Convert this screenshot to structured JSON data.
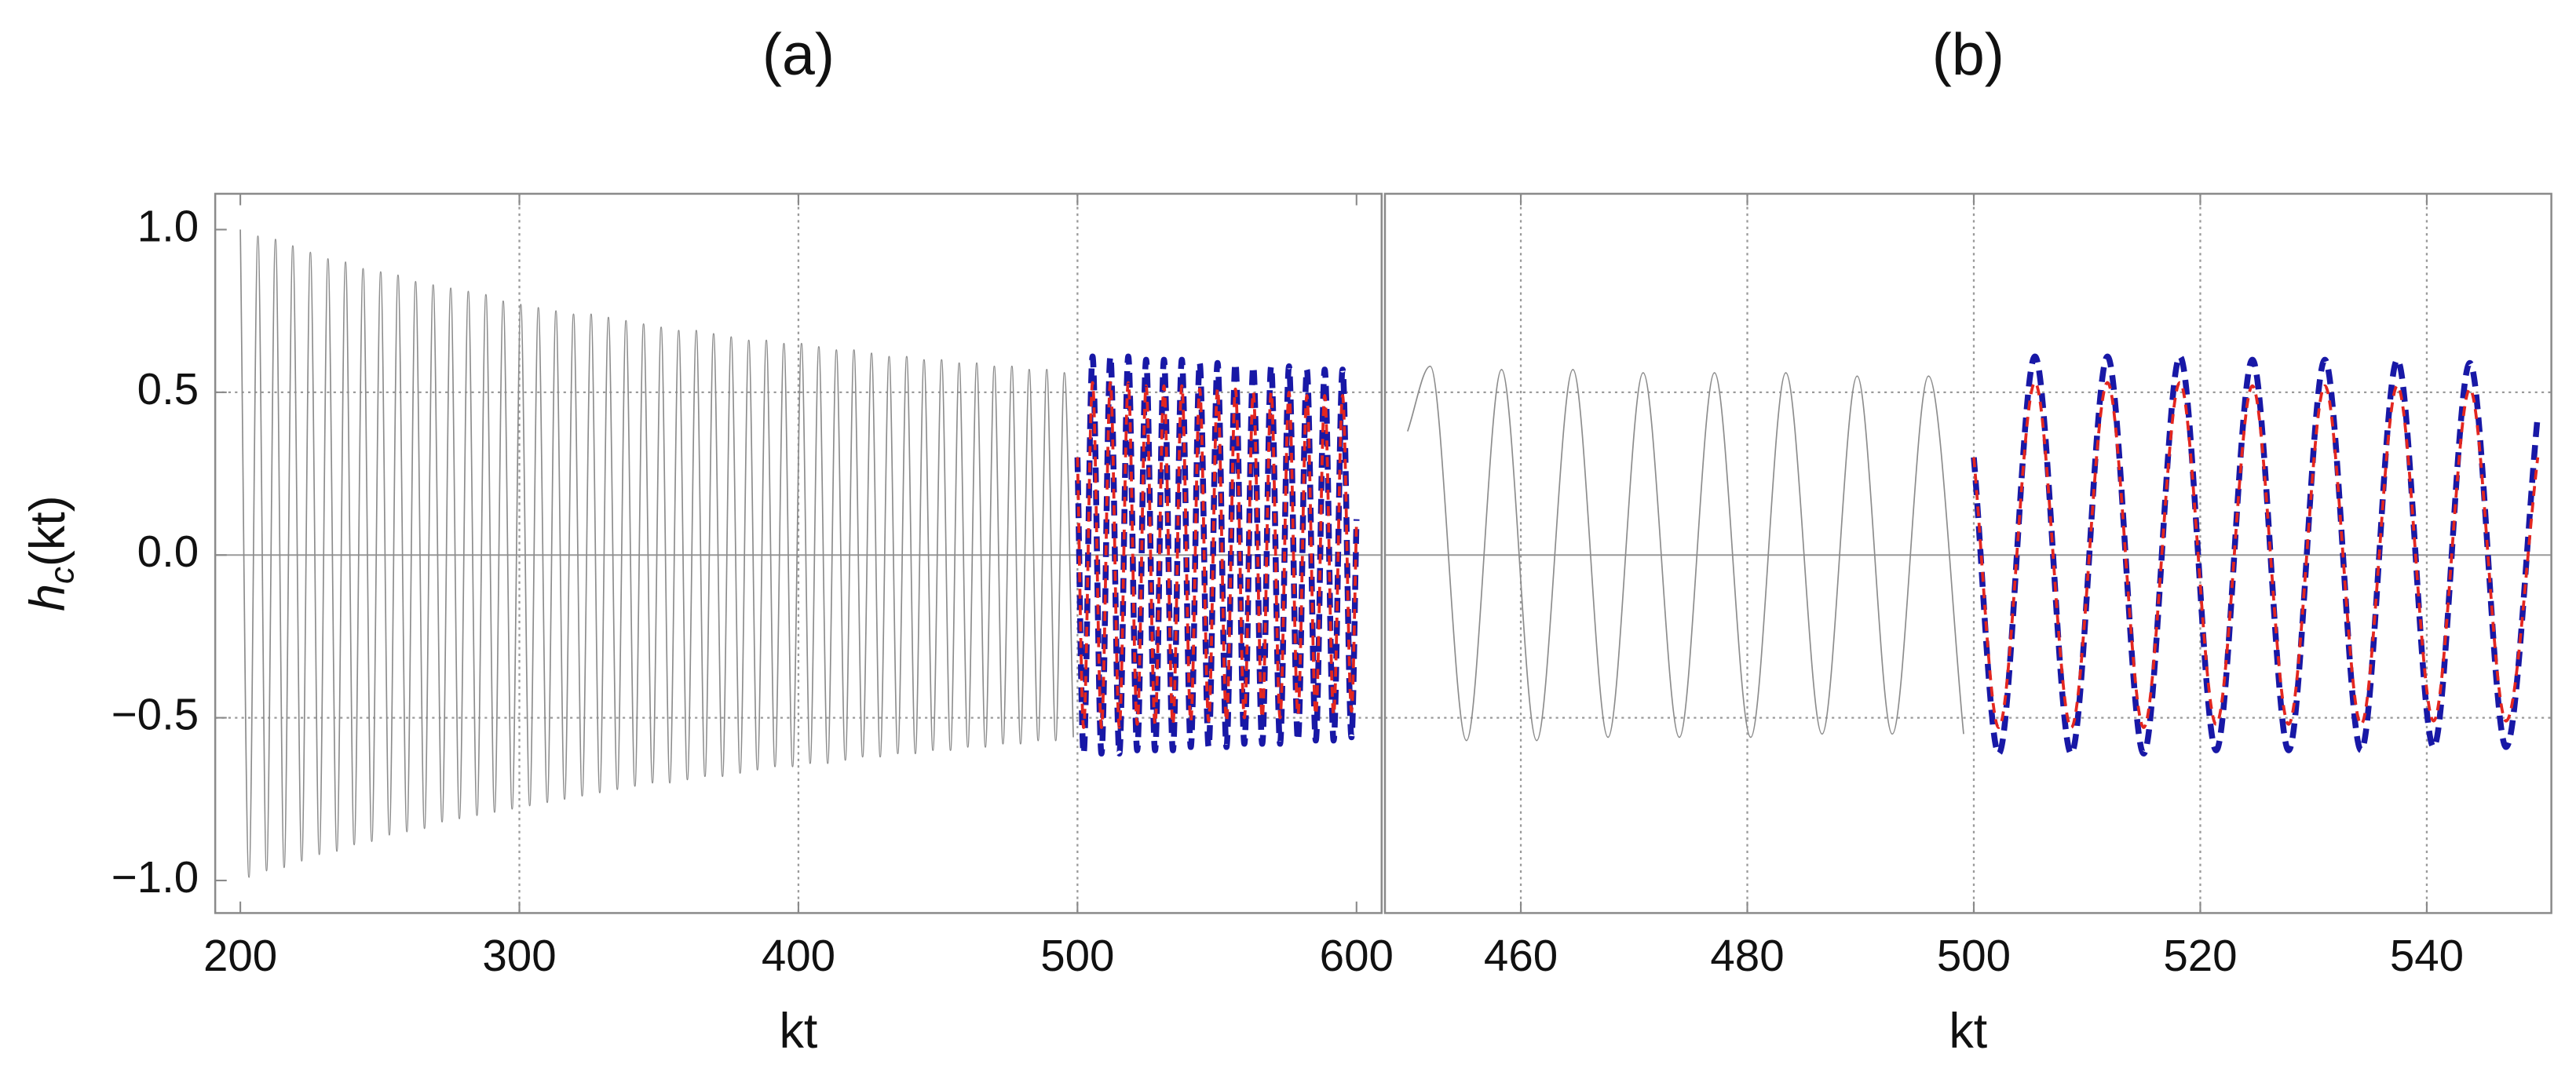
{
  "chart_data": [
    {
      "type": "line",
      "title": "(a)",
      "xlabel": "kt",
      "ylabel": [
        "h",
        "c",
        "(kt)"
      ],
      "xlim": [
        191,
        609
      ],
      "ylim": [
        -1.1,
        1.11
      ],
      "xticks": [
        200,
        300,
        400,
        500,
        600
      ],
      "yticks": [
        {
          "value": -1.0,
          "label": "−1.0"
        },
        {
          "value": -0.5,
          "label": "−0.5"
        },
        {
          "value": 0.0,
          "label": "0.0"
        },
        {
          "value": 0.5,
          "label": "0.5"
        },
        {
          "value": 1.0,
          "label": "1.0"
        }
      ],
      "xgrid": [
        300,
        400,
        500
      ],
      "ygrid": [
        -0.5,
        0.5
      ],
      "zero_line": true,
      "series": [
        {
          "color": "#8c8c8c",
          "width": 0.8,
          "dash": "none",
          "x": [
            200.0,
            203.1,
            206.3,
            209.4,
            212.6,
            215.7,
            218.8,
            222.0,
            225.1,
            228.3,
            231.4,
            234.6,
            237.7,
            240.8,
            244.0,
            247.1,
            250.3,
            253.4,
            256.5,
            259.7,
            262.8,
            266.0,
            269.1,
            272.3,
            275.4,
            278.5,
            281.7,
            284.8,
            288.0,
            291.1,
            294.2,
            297.4,
            300.5,
            303.7,
            306.8,
            310.0,
            313.1,
            316.2,
            319.4,
            322.5,
            325.7,
            328.8,
            331.9,
            335.1,
            338.2,
            341.4,
            344.5,
            347.7,
            350.8,
            353.9,
            357.1,
            360.2,
            363.4,
            366.5,
            369.6,
            372.8,
            375.9,
            379.1,
            382.2,
            385.3,
            388.5,
            391.6,
            394.8,
            397.9,
            401.1,
            404.2,
            407.3,
            410.5,
            413.6,
            416.8,
            419.9,
            423.0,
            426.2,
            429.3,
            432.5,
            435.6,
            438.8,
            441.9,
            445.0,
            448.2,
            451.3,
            454.5,
            457.6,
            460.7,
            463.9,
            467.0,
            470.2,
            473.3,
            476.5,
            479.6,
            482.7,
            485.9,
            489.0,
            492.2,
            495.3,
            498.5
          ],
          "values": [
            1.0,
            -0.99,
            0.98,
            -0.97,
            0.97,
            -0.96,
            0.95,
            -0.94,
            0.93,
            -0.92,
            0.91,
            -0.91,
            0.9,
            -0.89,
            0.88,
            -0.88,
            0.87,
            -0.86,
            0.86,
            -0.85,
            0.84,
            -0.84,
            0.83,
            -0.82,
            0.82,
            -0.81,
            0.81,
            -0.8,
            0.8,
            -0.79,
            0.78,
            -0.78,
            0.77,
            -0.77,
            0.76,
            -0.76,
            0.75,
            -0.75,
            0.74,
            -0.74,
            0.74,
            -0.73,
            0.73,
            -0.72,
            0.72,
            -0.71,
            0.71,
            -0.7,
            0.7,
            -0.7,
            0.69,
            -0.69,
            0.69,
            -0.68,
            0.68,
            -0.68,
            0.67,
            -0.67,
            0.66,
            -0.66,
            0.66,
            -0.65,
            0.65,
            -0.65,
            0.65,
            -0.64,
            0.64,
            -0.64,
            0.63,
            -0.63,
            0.63,
            -0.62,
            0.62,
            -0.62,
            0.61,
            -0.61,
            0.61,
            -0.61,
            0.6,
            -0.6,
            0.6,
            -0.6,
            0.59,
            -0.59,
            0.59,
            -0.59,
            0.58,
            -0.58,
            0.58,
            -0.58,
            0.57,
            -0.57,
            0.57,
            -0.57,
            0.56,
            -0.56
          ]
        },
        {
          "color": "#1818a6",
          "width": 3.6,
          "dash": "9 5",
          "x": [
            500.0,
            502.2,
            505.4,
            508.6,
            511.8,
            515.0,
            518.2,
            521.4,
            524.6,
            527.8,
            531.0,
            534.2,
            537.4,
            540.6,
            543.8,
            547.0,
            550.2,
            553.4,
            556.6,
            559.8,
            563.0,
            566.2,
            569.4,
            572.6,
            575.8,
            579.0,
            582.2,
            585.4,
            588.6,
            591.8,
            595.0,
            598.2,
            600.0
          ],
          "values": [
            0.3,
            -0.61,
            0.61,
            -0.61,
            0.61,
            -0.61,
            0.61,
            -0.6,
            0.6,
            -0.6,
            0.6,
            -0.6,
            0.6,
            -0.59,
            0.59,
            -0.59,
            0.59,
            -0.59,
            0.59,
            -0.58,
            0.58,
            -0.58,
            0.58,
            -0.58,
            0.58,
            -0.57,
            0.57,
            -0.57,
            0.57,
            -0.57,
            0.57,
            -0.56,
            0.11
          ]
        },
        {
          "color": "#e3261f",
          "width": 1.8,
          "dash": "6 4",
          "x": [
            500.0,
            502.2,
            505.4,
            508.6,
            511.8,
            515.0,
            518.2,
            521.4,
            524.6,
            527.8,
            531.0,
            534.2,
            537.4,
            540.6,
            543.8,
            547.0,
            550.2,
            553.4,
            556.6,
            559.8,
            563.0,
            566.2,
            569.4,
            572.6,
            575.8,
            579.0,
            582.2,
            585.4,
            588.6,
            591.8,
            595.0,
            598.2,
            600.0
          ],
          "values": [
            0.3,
            -0.53,
            0.53,
            -0.53,
            0.53,
            -0.53,
            0.53,
            -0.52,
            0.52,
            -0.52,
            0.52,
            -0.52,
            0.52,
            -0.51,
            0.51,
            -0.51,
            0.51,
            -0.51,
            0.51,
            -0.5,
            0.5,
            -0.5,
            0.5,
            -0.5,
            0.5,
            -0.49,
            0.49,
            -0.49,
            0.49,
            -0.49,
            0.49,
            -0.48,
            0.1
          ]
        }
      ]
    },
    {
      "type": "line",
      "title": "(b)",
      "xlabel": "kt",
      "xlim": [
        448,
        551
      ],
      "ylim": [
        -1.1,
        1.11
      ],
      "xticks": [
        460,
        480,
        500,
        520,
        540
      ],
      "xgrid": [
        460,
        480,
        500,
        520,
        540
      ],
      "ygrid": [
        -0.5,
        0.5
      ],
      "zero_line": true,
      "series": [
        {
          "color": "#8c8c8c",
          "width": 0.8,
          "dash": "none",
          "x": [
            450.0,
            452.0,
            455.2,
            458.3,
            461.4,
            464.6,
            467.7,
            470.8,
            474.0,
            477.1,
            480.3,
            483.4,
            486.6,
            489.7,
            492.8,
            496.0,
            499.1
          ],
          "values": [
            0.38,
            0.58,
            -0.57,
            0.57,
            -0.57,
            0.57,
            -0.56,
            0.56,
            -0.56,
            0.56,
            -0.56,
            0.56,
            -0.55,
            0.55,
            -0.55,
            0.55,
            -0.55
          ]
        },
        {
          "color": "#1818a6",
          "width": 3.6,
          "dash": "9 5",
          "x": [
            500.0,
            502.2,
            505.4,
            508.6,
            511.8,
            515.0,
            518.2,
            521.4,
            524.6,
            527.8,
            531.0,
            534.2,
            537.4,
            540.6,
            543.8,
            547.0,
            549.8
          ],
          "values": [
            0.3,
            -0.61,
            0.61,
            -0.61,
            0.61,
            -0.61,
            0.61,
            -0.6,
            0.6,
            -0.6,
            0.6,
            -0.6,
            0.6,
            -0.59,
            0.59,
            -0.59,
            0.43
          ]
        },
        {
          "color": "#e3261f",
          "width": 1.8,
          "dash": "6 4",
          "x": [
            500.0,
            502.2,
            505.4,
            508.6,
            511.8,
            515.0,
            518.2,
            521.4,
            524.6,
            527.8,
            531.0,
            534.2,
            537.4,
            540.6,
            543.8,
            547.0,
            549.8
          ],
          "values": [
            0.3,
            -0.53,
            0.53,
            -0.53,
            0.53,
            -0.53,
            0.53,
            -0.52,
            0.52,
            -0.52,
            0.52,
            -0.52,
            0.52,
            -0.51,
            0.51,
            -0.51,
            0.3
          ]
        }
      ]
    }
  ]
}
